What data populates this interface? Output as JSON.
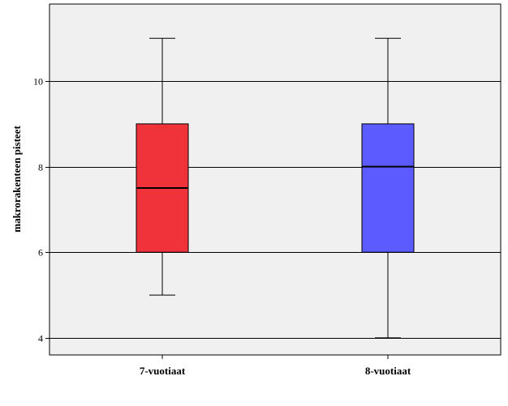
{
  "chart_data": {
    "type": "box",
    "title": "",
    "xlabel": "",
    "ylabel": "makrorakenteen pisteet",
    "ylim": [
      3.6,
      11.8
    ],
    "yticks": [
      4,
      6,
      8,
      10
    ],
    "grid": "horizontal",
    "background_color": "#f0f0f0",
    "categories": [
      "7-vuotiaat",
      "8-vuotiaat"
    ],
    "boxes": [
      {
        "category": "7-vuotiaat",
        "min": 5,
        "q1": 6,
        "median": 7.5,
        "q3": 9,
        "max": 11,
        "color": "#f0323a"
      },
      {
        "category": "8-vuotiaat",
        "min": 4,
        "q1": 6,
        "median": 8,
        "q3": 9,
        "max": 11,
        "color": "#5b5bff"
      }
    ]
  }
}
